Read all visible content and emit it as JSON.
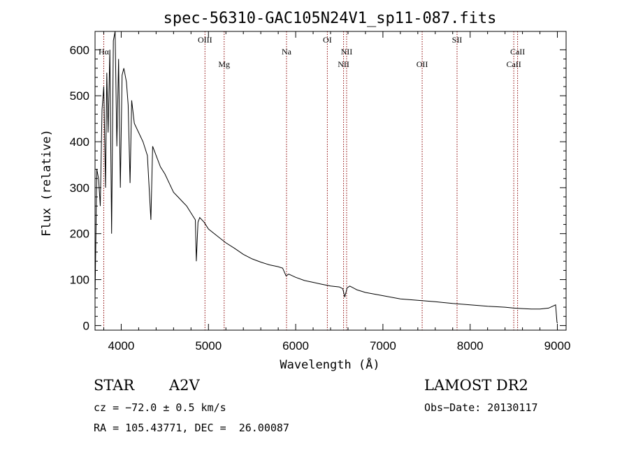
{
  "chart_data": {
    "type": "line",
    "title": "spec-56310-GAC105N24V1_sp11-087.fits",
    "xlabel": "Wavelength (Å)",
    "ylabel": "Flux (relative)",
    "xlim": [
      3700,
      9100
    ],
    "ylim": [
      -10,
      640
    ],
    "xticks": [
      4000,
      5000,
      6000,
      7000,
      8000,
      9000
    ],
    "yticks": [
      0,
      100,
      200,
      300,
      400,
      500,
      600
    ],
    "grid": false,
    "series": [
      {
        "x": [
          3700,
          3720,
          3740,
          3760,
          3780,
          3800,
          3820,
          3835,
          3850,
          3870,
          3890,
          3910,
          3930,
          3950,
          3970,
          3990,
          4010,
          4030,
          4060,
          4080,
          4101,
          4120,
          4150,
          4200,
          4250,
          4300,
          4340,
          4360,
          4400,
          4450,
          4500,
          4550,
          4600,
          4650,
          4700,
          4750,
          4800,
          4850,
          4861,
          4880,
          4900,
          4950,
          5000,
          5100,
          5200,
          5300,
          5400,
          5500,
          5600,
          5700,
          5800,
          5850,
          5890,
          5920,
          6000,
          6100,
          6200,
          6300,
          6400,
          6500,
          6540,
          6563,
          6590,
          6620,
          6700,
          6800,
          7000,
          7200,
          7400,
          7600,
          7800,
          8000,
          8200,
          8400,
          8500,
          8600,
          8700,
          8800,
          8900,
          8980,
          8995,
          9000
        ],
        "values": [
          60,
          340,
          320,
          260,
          470,
          520,
          300,
          550,
          420,
          600,
          200,
          620,
          640,
          390,
          580,
          300,
          545,
          560,
          530,
          480,
          310,
          490,
          440,
          420,
          400,
          370,
          230,
          390,
          370,
          345,
          330,
          310,
          290,
          280,
          270,
          260,
          245,
          230,
          140,
          225,
          235,
          225,
          210,
          195,
          180,
          168,
          155,
          145,
          138,
          132,
          128,
          125,
          108,
          112,
          105,
          98,
          94,
          90,
          86,
          84,
          80,
          62,
          82,
          86,
          78,
          72,
          65,
          58,
          55,
          52,
          48,
          45,
          42,
          40,
          38,
          37,
          36,
          36,
          38,
          45,
          8,
          5
        ]
      }
    ],
    "spectral_lines": [
      {
        "name": "Hα",
        "x": 3800,
        "row": 2
      },
      {
        "name": "OIII",
        "x": 4960,
        "row": 1
      },
      {
        "name": "Mg",
        "x": 5180,
        "row": 3
      },
      {
        "name": "Na",
        "x": 5895,
        "row": 2
      },
      {
        "name": "OI",
        "x": 6363,
        "row": 1
      },
      {
        "name": "NII",
        "x": 6549,
        "row": 3
      },
      {
        "name": "NII",
        "x": 6584,
        "row": 2
      },
      {
        "name": "OII",
        "x": 7450,
        "row": 3
      },
      {
        "name": "SII",
        "x": 7850,
        "row": 1
      },
      {
        "name": "CaII",
        "x": 8500,
        "row": 3
      },
      {
        "name": "CaII",
        "x": 8544,
        "row": 2
      }
    ],
    "line_color": "#000000",
    "marker_color": "#8b0000"
  },
  "footer": {
    "object_class": "STAR",
    "subclass": "A2V",
    "survey": "LAMOST DR2",
    "cz": "cz = −72.0 ± 0.5 km/s",
    "obs_date": "Obs−Date: 20130117",
    "coords": "RA = 105.43771, DEC =  26.00087"
  }
}
